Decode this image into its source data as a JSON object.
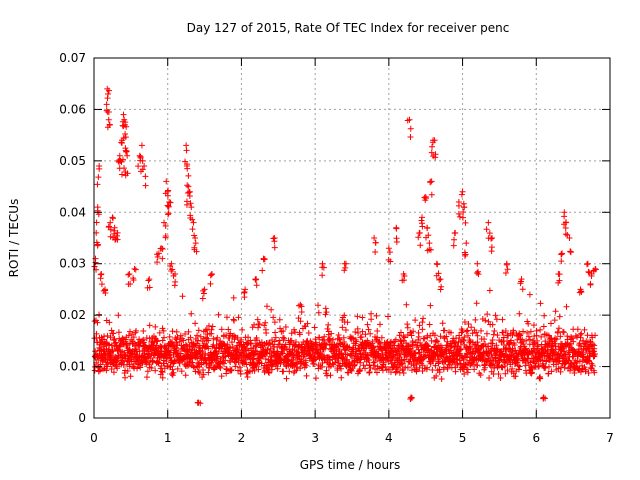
{
  "chart_data": {
    "type": "scatter",
    "title": "Day 127 of 2015, Rate Of TEC Index for receiver penc",
    "xlabel": "GPS time / hours",
    "ylabel": "ROTI / TECUs",
    "xlim": [
      0,
      7
    ],
    "ylim": [
      0,
      0.07
    ],
    "xticks": [
      "0",
      "1",
      "2",
      "3",
      "4",
      "5",
      "6",
      "7"
    ],
    "yticks": [
      "0",
      "0.01",
      "0.02",
      "0.03",
      "0.04",
      "0.05",
      "0.06",
      "0.07"
    ],
    "grid": true,
    "marker": "+",
    "color": "#ff0000",
    "series": [
      {
        "name": "ROTI",
        "x_range": [
          0,
          6.8
        ],
        "typical_y_range": [
          0.005,
          0.02
        ],
        "sample_points": [
          [
            0.02,
            0.031
          ],
          [
            0.03,
            0.036
          ],
          [
            0.05,
            0.041
          ],
          [
            0.07,
            0.049
          ],
          [
            0.1,
            0.028
          ],
          [
            0.12,
            0.012
          ],
          [
            0.15,
            0.025
          ],
          [
            0.18,
            0.064
          ],
          [
            0.19,
            0.063
          ],
          [
            0.2,
            0.058
          ],
          [
            0.22,
            0.038
          ],
          [
            0.25,
            0.039
          ],
          [
            0.28,
            0.037
          ],
          [
            0.32,
            0.036
          ],
          [
            0.35,
            0.051
          ],
          [
            0.36,
            0.05
          ],
          [
            0.38,
            0.054
          ],
          [
            0.4,
            0.059
          ],
          [
            0.41,
            0.058
          ],
          [
            0.42,
            0.057
          ],
          [
            0.43,
            0.052
          ],
          [
            0.45,
            0.051
          ],
          [
            0.48,
            0.028
          ],
          [
            0.55,
            0.029
          ],
          [
            0.62,
            0.051
          ],
          [
            0.65,
            0.053
          ],
          [
            0.68,
            0.049
          ],
          [
            0.75,
            0.027
          ],
          [
            0.88,
            0.032
          ],
          [
            0.92,
            0.033
          ],
          [
            0.95,
            0.038
          ],
          [
            0.98,
            0.046
          ],
          [
            1.0,
            0.044
          ],
          [
            1.02,
            0.042
          ],
          [
            1.05,
            0.03
          ],
          [
            1.1,
            0.028
          ],
          [
            1.25,
            0.053
          ],
          [
            1.26,
            0.049
          ],
          [
            1.28,
            0.045
          ],
          [
            1.3,
            0.044
          ],
          [
            1.32,
            0.041
          ],
          [
            1.35,
            0.038
          ],
          [
            1.38,
            0.034
          ],
          [
            1.42,
            0.003
          ],
          [
            1.5,
            0.025
          ],
          [
            1.6,
            0.028
          ],
          [
            2.05,
            0.025
          ],
          [
            2.2,
            0.027
          ],
          [
            2.3,
            0.031
          ],
          [
            2.45,
            0.035
          ],
          [
            2.8,
            0.022
          ],
          [
            3.1,
            0.03
          ],
          [
            3.4,
            0.03
          ],
          [
            3.8,
            0.035
          ],
          [
            4.0,
            0.033
          ],
          [
            4.1,
            0.037
          ],
          [
            4.2,
            0.028
          ],
          [
            4.28,
            0.058
          ],
          [
            4.3,
            0.004
          ],
          [
            4.42,
            0.036
          ],
          [
            4.45,
            0.039
          ],
          [
            4.5,
            0.043
          ],
          [
            4.52,
            0.037
          ],
          [
            4.55,
            0.034
          ],
          [
            4.58,
            0.046
          ],
          [
            4.6,
            0.054
          ],
          [
            4.62,
            0.054
          ],
          [
            4.65,
            0.03
          ],
          [
            4.7,
            0.027
          ],
          [
            4.9,
            0.036
          ],
          [
            4.95,
            0.042
          ],
          [
            5.0,
            0.044
          ],
          [
            5.02,
            0.041
          ],
          [
            5.05,
            0.034
          ],
          [
            5.2,
            0.03
          ],
          [
            5.35,
            0.038
          ],
          [
            5.4,
            0.035
          ],
          [
            5.6,
            0.03
          ],
          [
            5.8,
            0.027
          ],
          [
            6.05,
            0.008
          ],
          [
            6.1,
            0.004
          ],
          [
            6.3,
            0.028
          ],
          [
            6.35,
            0.032
          ],
          [
            6.38,
            0.04
          ],
          [
            6.4,
            0.038
          ],
          [
            6.45,
            0.035
          ],
          [
            6.6,
            0.025
          ],
          [
            6.7,
            0.03
          ],
          [
            6.75,
            0.028
          ],
          [
            6.8,
            0.029
          ]
        ]
      }
    ]
  }
}
